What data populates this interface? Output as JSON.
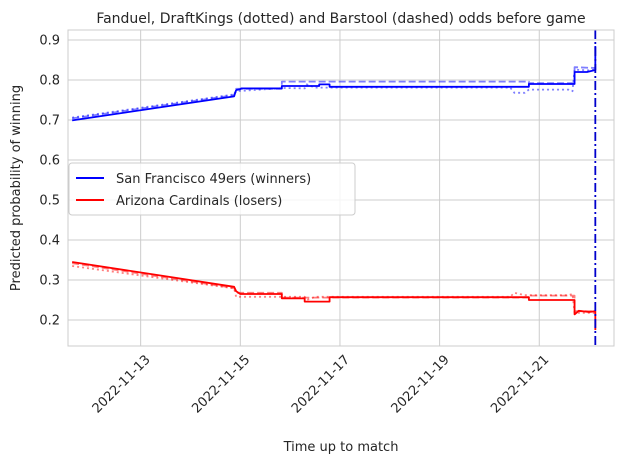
{
  "colors": {
    "sf": "#0000ff",
    "az": "#ff0000",
    "grid": "#cccccc",
    "frame": "#cccccc",
    "vline": "#0000cc"
  },
  "chart_data": {
    "type": "line",
    "title": "Fanduel, DraftKings (dotted) and Barstool (dashed) odds before game",
    "xlabel": "Time up to match",
    "ylabel": "Predicted probability of winning",
    "x_axis_type": "date",
    "xlim": [
      "2022-11-11T13:00",
      "2022-11-22T12:00"
    ],
    "ylim": [
      0.135,
      0.925
    ],
    "yticks": [
      0.2,
      0.3,
      0.4,
      0.5,
      0.6,
      0.7,
      0.8,
      0.9
    ],
    "ytick_labels": [
      "0.2",
      "0.3",
      "0.4",
      "0.5",
      "0.6",
      "0.7",
      "0.8",
      "0.9"
    ],
    "xticks": [
      "2022-11-13",
      "2022-11-15",
      "2022-11-17",
      "2022-11-19",
      "2022-11-21"
    ],
    "xtick_labels": [
      "2022-11-13",
      "2022-11-15",
      "2022-11-17",
      "2022-11-19",
      "2022-11-21"
    ],
    "grid": true,
    "legend_position": "center-left",
    "vertical_line": {
      "x": "2022-11-22T03:00",
      "style": "dashdot",
      "color": "#0000cc"
    },
    "legend": [
      {
        "label": "San Francisco 49ers (winners)",
        "color": "#0000ff"
      },
      {
        "label": "Arizona Cardinals (losers)",
        "color": "#ff0000"
      }
    ],
    "series": [
      {
        "team": "sf",
        "book": "fanduel",
        "style": "solid",
        "color": "#0000ff",
        "points": [
          [
            "2022-11-11T15:00",
            0.699
          ],
          [
            "2022-11-14T21:00",
            0.759
          ],
          [
            "2022-11-14T22:00",
            0.775
          ],
          [
            "2022-11-15T00:00",
            0.777
          ],
          [
            "2022-11-15T00:30",
            0.779
          ],
          [
            "2022-11-15T20:00",
            0.779
          ],
          [
            "2022-11-15T20:00",
            0.785
          ],
          [
            "2022-11-16T14:00",
            0.785
          ],
          [
            "2022-11-16T14:00",
            0.789
          ],
          [
            "2022-11-16T19:00",
            0.789
          ],
          [
            "2022-11-16T19:00",
            0.783
          ],
          [
            "2022-11-20T19:00",
            0.783
          ],
          [
            "2022-11-20T19:00",
            0.79
          ],
          [
            "2022-11-21T17:00",
            0.79
          ],
          [
            "2022-11-21T17:00",
            0.82
          ],
          [
            "2022-11-21T23:00",
            0.82
          ],
          [
            "2022-11-22T03:00",
            0.825
          ],
          [
            "2022-11-22T03:00",
            0.885
          ]
        ]
      },
      {
        "team": "sf",
        "book": "barstool",
        "style": "dashed",
        "color": "#0000ff",
        "points": [
          [
            "2022-11-11T15:00",
            0.704
          ],
          [
            "2022-11-14T21:00",
            0.762
          ],
          [
            "2022-11-14T22:00",
            0.778
          ],
          [
            "2022-11-15T20:00",
            0.778
          ],
          [
            "2022-11-15T20:00",
            0.796
          ],
          [
            "2022-11-20T19:00",
            0.796
          ],
          [
            "2022-11-20T19:00",
            0.792
          ],
          [
            "2022-11-21T17:00",
            0.792
          ],
          [
            "2022-11-21T17:00",
            0.832
          ],
          [
            "2022-11-22T03:00",
            0.83
          ]
        ]
      },
      {
        "team": "sf",
        "book": "draftkings",
        "style": "dotted",
        "color": "#0000ff",
        "points": [
          [
            "2022-11-11T15:00",
            0.706
          ],
          [
            "2022-11-14T21:00",
            0.764
          ],
          [
            "2022-11-14T22:00",
            0.772
          ],
          [
            "2022-11-15T21:00",
            0.78
          ],
          [
            "2022-11-16T07:00",
            0.779
          ],
          [
            "2022-11-16T08:00",
            0.789
          ],
          [
            "2022-11-16T12:00",
            0.781
          ],
          [
            "2022-11-20T10:00",
            0.781
          ],
          [
            "2022-11-20T12:00",
            0.768
          ],
          [
            "2022-11-20T17:00",
            0.768
          ],
          [
            "2022-11-20T19:00",
            0.776
          ],
          [
            "2022-11-21T14:00",
            0.776
          ],
          [
            "2022-11-21T16:00",
            0.772
          ],
          [
            "2022-11-21T17:00",
            0.826
          ],
          [
            "2022-11-22T00:00",
            0.824
          ],
          [
            "2022-11-22T03:00",
            0.826
          ]
        ]
      },
      {
        "team": "az",
        "book": "fanduel",
        "style": "solid",
        "color": "#ff0000",
        "points": [
          [
            "2022-11-11T15:00",
            0.345
          ],
          [
            "2022-11-14T21:00",
            0.283
          ],
          [
            "2022-11-14T22:00",
            0.272
          ],
          [
            "2022-11-15T00:00",
            0.265
          ],
          [
            "2022-11-15T20:00",
            0.265
          ],
          [
            "2022-11-15T20:00",
            0.254
          ],
          [
            "2022-11-16T07:00",
            0.254
          ],
          [
            "2022-11-16T07:00",
            0.246
          ],
          [
            "2022-11-16T19:00",
            0.246
          ],
          [
            "2022-11-16T19:00",
            0.257
          ],
          [
            "2022-11-20T19:00",
            0.257
          ],
          [
            "2022-11-20T19:00",
            0.25
          ],
          [
            "2022-11-21T17:00",
            0.25
          ],
          [
            "2022-11-21T17:00",
            0.214
          ],
          [
            "2022-11-21T19:00",
            0.223
          ],
          [
            "2022-11-22T00:00",
            0.22
          ],
          [
            "2022-11-22T03:00",
            0.222
          ],
          [
            "2022-11-22T03:00",
            0.175
          ]
        ]
      },
      {
        "team": "az",
        "book": "barstool",
        "style": "dashed",
        "color": "#ff0000",
        "points": [
          [
            "2022-11-11T15:00",
            0.342
          ],
          [
            "2022-11-14T21:00",
            0.28
          ],
          [
            "2022-11-14T22:00",
            0.268
          ],
          [
            "2022-11-15T20:00",
            0.268
          ],
          [
            "2022-11-15T20:00",
            0.256
          ],
          [
            "2022-11-20T19:00",
            0.256
          ],
          [
            "2022-11-20T19:00",
            0.261
          ],
          [
            "2022-11-21T17:00",
            0.261
          ],
          [
            "2022-11-21T17:00",
            0.222
          ],
          [
            "2022-11-22T03:00",
            0.222
          ]
        ]
      },
      {
        "team": "az",
        "book": "draftkings",
        "style": "dotted",
        "color": "#ff0000",
        "points": [
          [
            "2022-11-11T15:00",
            0.335
          ],
          [
            "2022-11-14T21:00",
            0.279
          ],
          [
            "2022-11-14T22:00",
            0.258
          ],
          [
            "2022-11-16T07:00",
            0.258
          ],
          [
            "2022-11-16T08:00",
            0.25
          ],
          [
            "2022-11-16T12:00",
            0.258
          ],
          [
            "2022-11-20T10:00",
            0.258
          ],
          [
            "2022-11-20T12:00",
            0.268
          ],
          [
            "2022-11-20T17:00",
            0.262
          ],
          [
            "2022-11-21T14:00",
            0.262
          ],
          [
            "2022-11-21T16:00",
            0.265
          ],
          [
            "2022-11-21T17:00",
            0.218
          ],
          [
            "2022-11-22T03:00",
            0.218
          ]
        ]
      }
    ]
  }
}
